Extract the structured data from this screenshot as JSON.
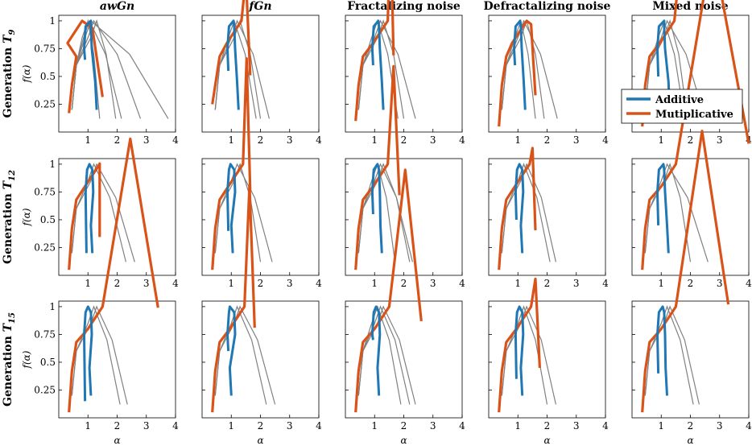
{
  "chart_data": {
    "type": "line",
    "columns": [
      {
        "title": "awGn",
        "italic": true
      },
      {
        "title": "fGn",
        "italic": true
      },
      {
        "title": "Fractalizing noise",
        "italic": false
      },
      {
        "title": "Defractalizing noise",
        "italic": false
      },
      {
        "title": "Mixed noise",
        "italic": false
      }
    ],
    "rows": [
      {
        "prefix": "Generation ",
        "symbol": "T",
        "sub": "9"
      },
      {
        "prefix": "Generation ",
        "symbol": "T",
        "sub": "12"
      },
      {
        "prefix": "Generation ",
        "symbol": "T",
        "sub": "15"
      }
    ],
    "xlabel": "α",
    "ylabel": "f(α)",
    "xlim": [
      0,
      4
    ],
    "ylim": [
      0,
      1.05
    ],
    "xticks": [
      1,
      2,
      3,
      4
    ],
    "yticks": [
      0.25,
      0.5,
      0.75,
      1
    ],
    "ytick_labels": [
      "0.25",
      "0.5",
      "0.75",
      "1"
    ],
    "legend": {
      "location": "inside Mixed noise, Generation T9 panel",
      "items": [
        {
          "name": "Additive",
          "color": "#1f77b4"
        },
        {
          "name": "Mutiplicative",
          "color": "#d95319"
        }
      ]
    },
    "colors": {
      "additive": "#1f77b4",
      "multiplicative": "#d95319",
      "surrogates": "#808080"
    },
    "panels": [
      [
        {
          "add": [
            0.95,
            1.35
          ],
          "add_bottom": [
            0.2,
            0.65
          ],
          "mul": [
            0.8,
            0.72,
            1.05,
            1.5
          ],
          "grey": [
            [
              1.3,
              1.95
            ],
            [
              1.2,
              2.8
            ],
            [
              1.1,
              3.75
            ],
            [
              1.05,
              2.15
            ],
            [
              1.0,
              1.4
            ]
          ]
        },
        {
          "add": [
            0.95,
            1.3
          ],
          "add_bottom": [
            0.2,
            0.55
          ],
          "mul": [
            1.35,
            0.8,
            1.7,
            1.65
          ],
          "grey": [
            [
              1.3,
              2.0
            ],
            [
              1.2,
              2.3
            ],
            [
              1.1,
              1.85
            ]
          ]
        },
        {
          "add": [
            1.0,
            1.35
          ],
          "add_bottom": [
            0.2,
            0.6
          ],
          "mul": [
            1.45,
            0.65,
            2.3,
            1.65
          ],
          "grey": [
            [
              1.3,
              2.0
            ],
            [
              1.2,
              2.4
            ],
            [
              1.1,
              1.8
            ]
          ]
        },
        {
          "add": [
            0.95,
            1.3
          ],
          "add_bottom": [
            0.2,
            0.6
          ],
          "mul": [
            1.3,
            0.6,
            1.1,
            1.6
          ],
          "grey": [
            [
              1.3,
              1.9
            ],
            [
              1.2,
              2.35
            ],
            [
              1.1,
              1.6
            ]
          ]
        },
        {
          "add": [
            0.95,
            1.35
          ],
          "add_bottom": [
            0.15,
            0.5
          ],
          "mul": [
            1.45,
            0.5,
            5.6,
            3.8
          ],
          "grey": [
            [
              1.3,
              1.9
            ],
            [
              1.2,
              2.5
            ],
            [
              1.1,
              1.8
            ]
          ]
        }
      ],
      [
        {
          "add": [
            1.0,
            1.2
          ],
          "add_bottom": [
            0.2,
            0.2
          ],
          "mul": [
            1.4,
            0.6,
            1.15,
            1.4
          ],
          "grey": [
            [
              1.3,
              2.6
            ],
            [
              1.2,
              2.3
            ]
          ]
        },
        {
          "add": [
            0.95,
            1.1
          ],
          "add_bottom": [
            0.2,
            0.4
          ],
          "mul": [
            1.4,
            0.6,
            2.5,
            1.65
          ],
          "grey": [
            [
              1.3,
              2.0
            ],
            [
              1.2,
              2.4
            ]
          ]
        },
        {
          "add": [
            1.0,
            1.3
          ],
          "add_bottom": [
            0.2,
            0.55
          ],
          "mul": [
            1.45,
            0.35,
            2.4,
            1.85
          ],
          "grey": [
            [
              1.3,
              2.2
            ],
            [
              1.2,
              2.3
            ],
            [
              1.1,
              1.7
            ]
          ]
        },
        {
          "add": [
            1.0,
            1.2
          ],
          "add_bottom": [
            0.2,
            0.5
          ],
          "mul": [
            1.4,
            0.35,
            1.35,
            1.6
          ],
          "grey": [
            [
              1.3,
              2.3
            ],
            [
              1.2,
              2.1
            ]
          ]
        },
        {
          "add": [
            0.95,
            1.3
          ],
          "add_bottom": [
            0.2,
            0.45
          ],
          "mul": [
            1.5,
            0.35,
            3.95,
            4.0
          ],
          "grey": [
            [
              1.3,
              2.0
            ],
            [
              1.2,
              2.6
            ]
          ]
        }
      ],
      [
        {
          "add": [
            0.95,
            1.15
          ],
          "add_bottom": [
            0.2,
            0.15
          ],
          "mul": [
            1.5,
            0.35,
            3.3,
            3.4
          ],
          "grey": [
            [
              1.3,
              2.35
            ],
            [
              1.2,
              2.1
            ]
          ]
        },
        {
          "add": [
            0.95,
            1.05
          ],
          "add_bottom": [
            0.2,
            0.6
          ],
          "mul": [
            1.45,
            0.55,
            2.7,
            1.8
          ],
          "grey": [
            [
              1.3,
              2.5
            ],
            [
              1.2,
              2.2
            ]
          ]
        },
        {
          "add": [
            1.0,
            1.2
          ],
          "add_bottom": [
            0.2,
            0.7
          ],
          "mul": [
            1.5,
            0.3,
            2.9,
            2.6
          ],
          "grey": [
            [
              1.3,
              2.4
            ],
            [
              1.2,
              2.2
            ],
            [
              1.1,
              1.9
            ]
          ]
        },
        {
          "add": [
            1.0,
            1.2
          ],
          "add_bottom": [
            0.2,
            0.35
          ],
          "mul": [
            1.45,
            0.3,
            1.5,
            1.75
          ],
          "grey": [
            [
              1.3,
              2.3
            ],
            [
              1.2,
              2.0
            ]
          ]
        },
        {
          "add": [
            0.95,
            1.25
          ],
          "add_bottom": [
            0.2,
            0.4
          ],
          "mul": [
            1.5,
            0.35,
            3.4,
            3.3
          ],
          "grey": [
            [
              1.3,
              2.3
            ],
            [
              1.2,
              2.1
            ]
          ]
        }
      ]
    ]
  }
}
